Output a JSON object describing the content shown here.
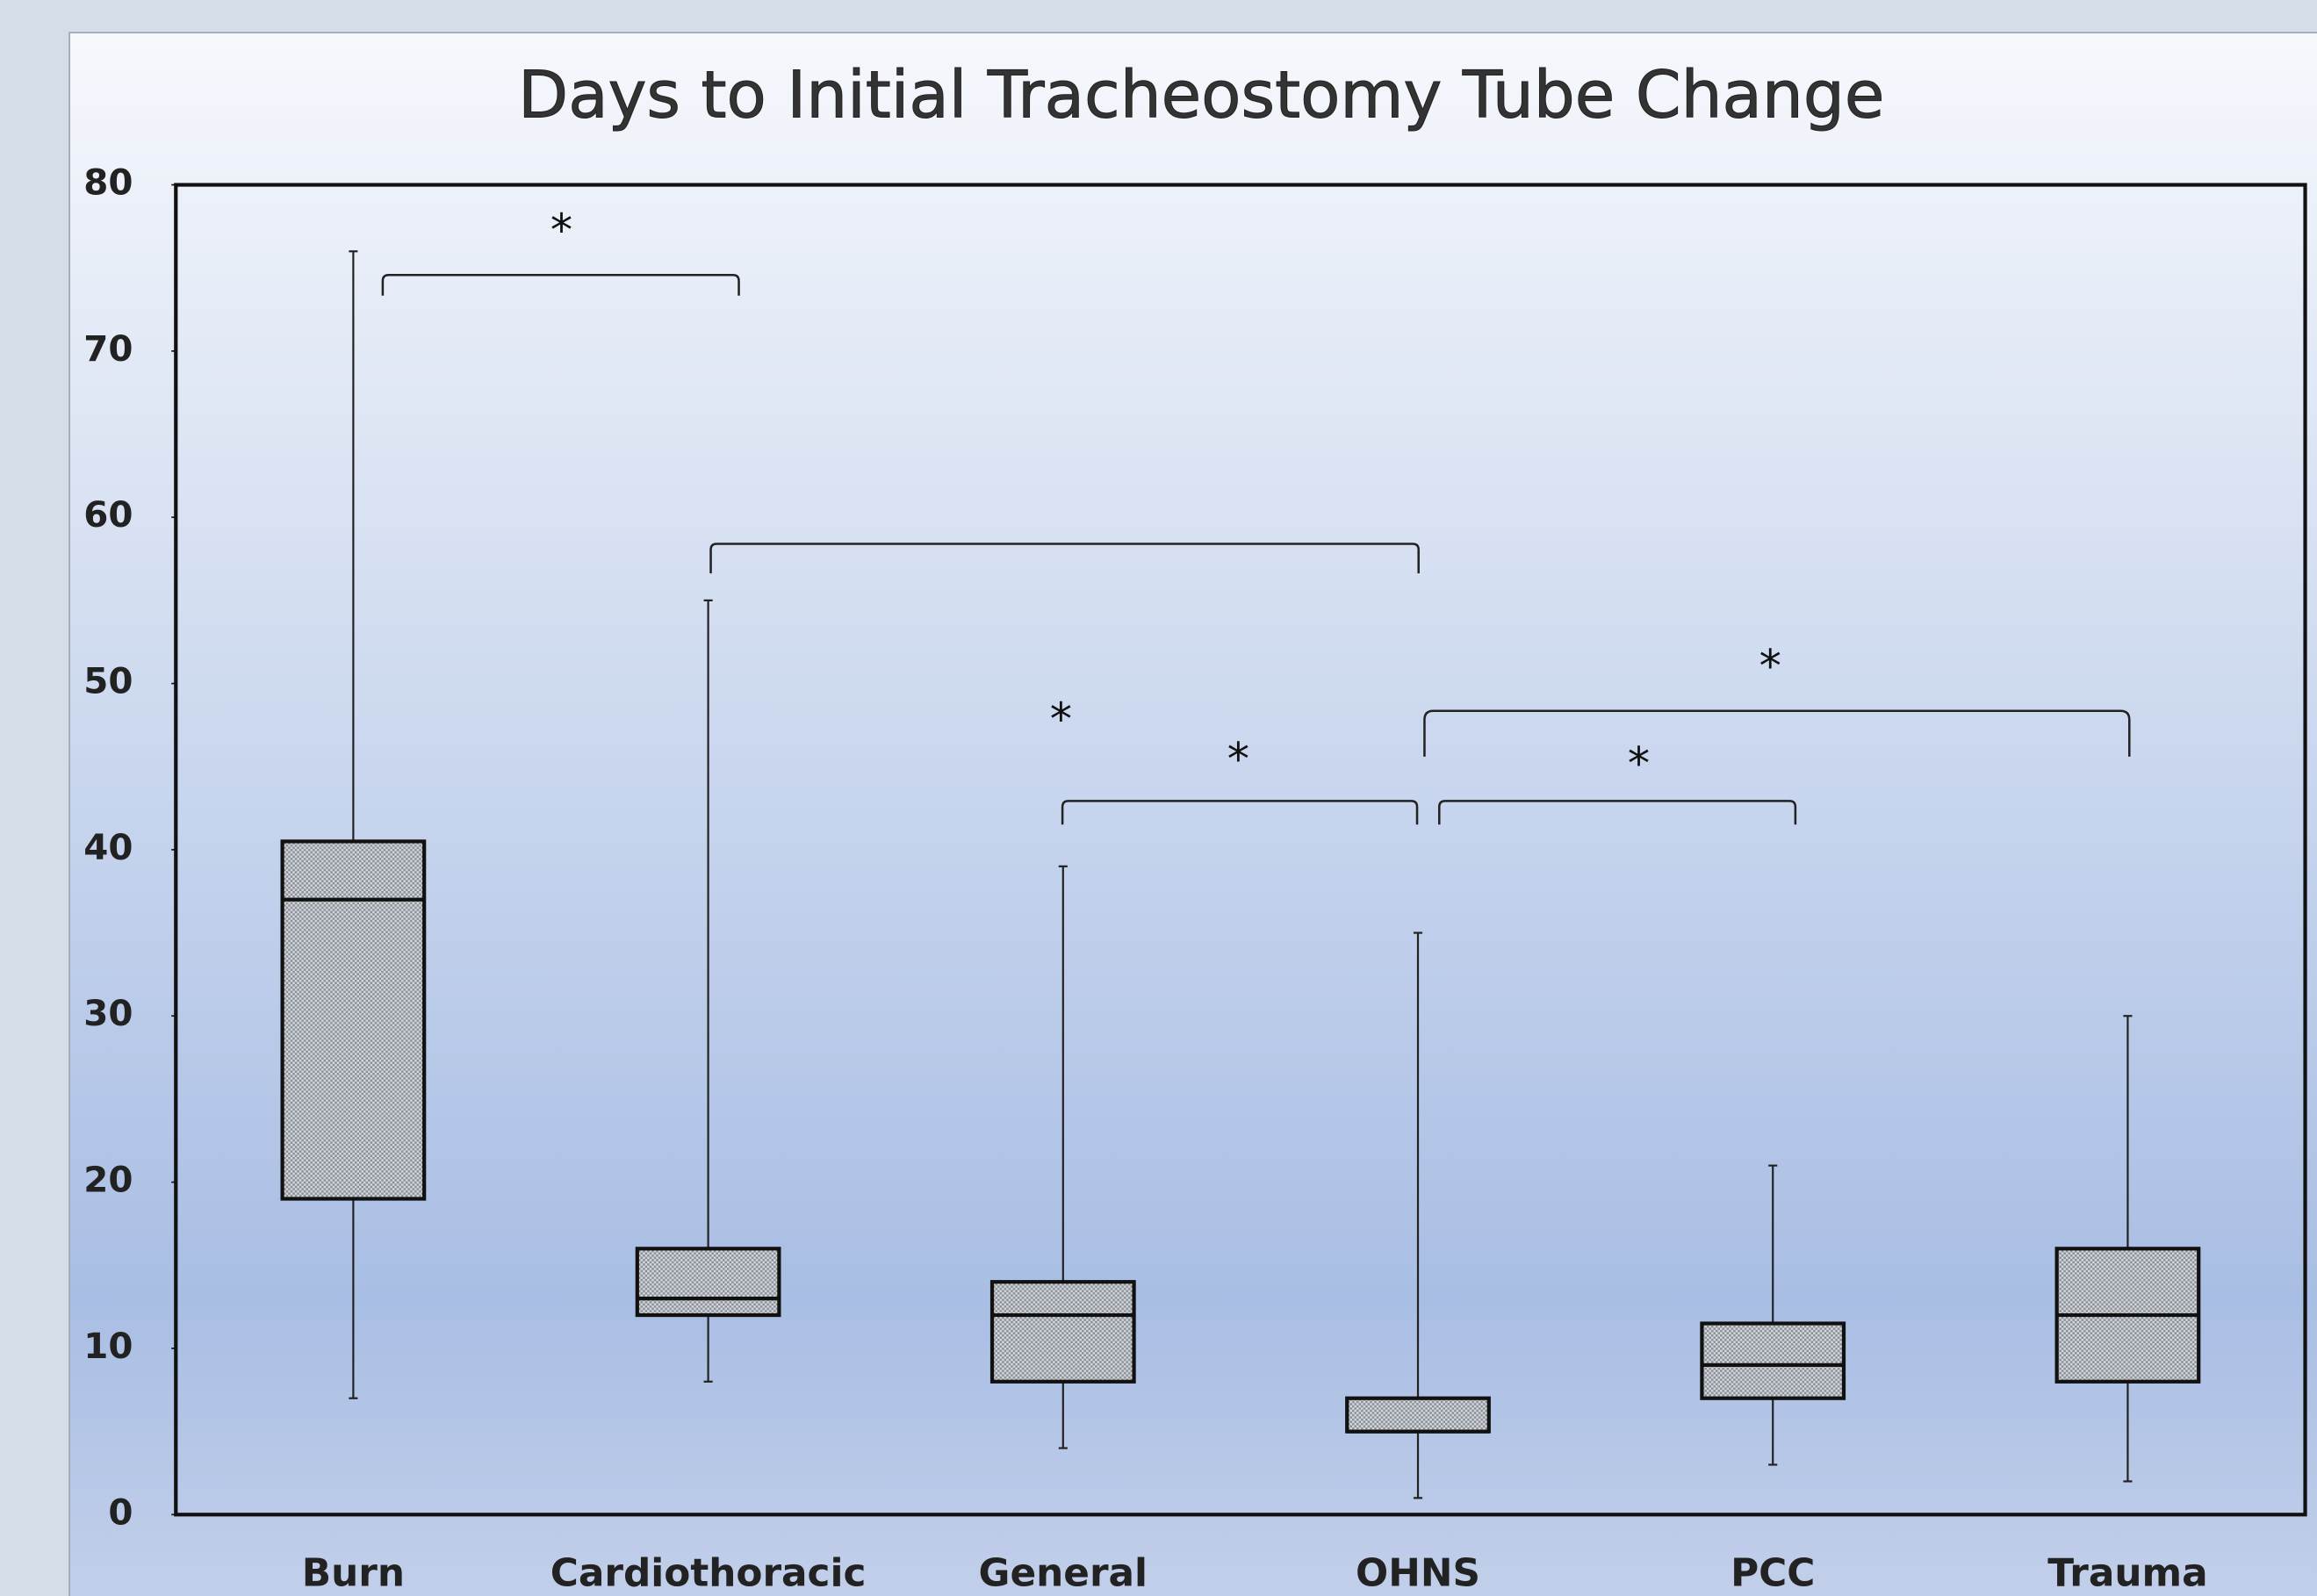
{
  "chart_data": {
    "type": "box",
    "title": "Days to Initial Tracheostomy Tube Change",
    "categories": [
      "Burn",
      "Cardiothoracic",
      "General",
      "OHNS",
      "PCC",
      "Trauma"
    ],
    "min": [
      7,
      8,
      4,
      1,
      3,
      2
    ],
    "q1": [
      19,
      12,
      8,
      5,
      7,
      8
    ],
    "median": [
      37,
      13,
      12,
      5,
      9,
      12
    ],
    "q3": [
      40.5,
      16,
      14,
      7,
      11.5,
      16
    ],
    "max": [
      76,
      55,
      39,
      35,
      21,
      30
    ],
    "ylim": [
      0,
      80
    ],
    "yticks": [
      0,
      10,
      20,
      30,
      40,
      50,
      60,
      70,
      80
    ],
    "annotations": [
      "*",
      "*",
      "*",
      "*",
      "*"
    ]
  }
}
